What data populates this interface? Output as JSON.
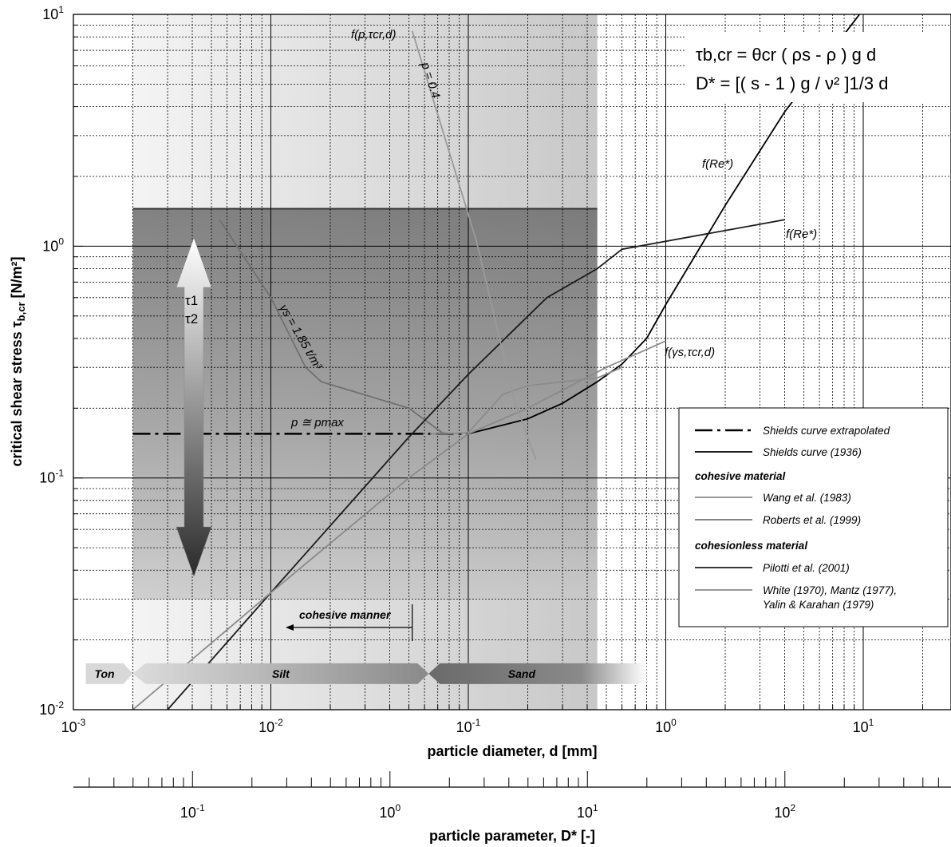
{
  "chart_data": {
    "type": "line",
    "xscale": "log",
    "yscale": "log",
    "xlim": [
      0.001,
      30
    ],
    "ylim": [
      0.01,
      10
    ],
    "xlabel": "particle diameter, d [mm]",
    "ylabel_main": "critical shear stress τ",
    "ylabel_sub": "b,cr",
    "ylabel_unit": " [N/m²]",
    "x2label": "particle parameter, D* [-]",
    "x_ticks": [
      {
        "base": "10",
        "exp": "-3",
        "value": 0.001
      },
      {
        "base": "10",
        "exp": "-2",
        "value": 0.01
      },
      {
        "base": "10",
        "exp": "-1",
        "value": 0.1
      },
      {
        "base": "10",
        "exp": "0",
        "value": 1
      },
      {
        "base": "10",
        "exp": "1",
        "value": 10
      }
    ],
    "y_ticks": [
      {
        "base": "10",
        "exp": "-2",
        "value": 0.01
      },
      {
        "base": "10",
        "exp": "-1",
        "value": 0.1
      },
      {
        "base": "10",
        "exp": "0",
        "value": 1
      },
      {
        "base": "10",
        "exp": "1",
        "value": 10
      }
    ],
    "x2_ticks": [
      {
        "base": "10",
        "exp": "-1",
        "value": 0.1
      },
      {
        "base": "10",
        "exp": "0",
        "value": 1
      },
      {
        "base": "10",
        "exp": "1",
        "value": 10
      },
      {
        "base": "10",
        "exp": "2",
        "value": 100
      }
    ],
    "x2_to_x_factor": 0.0401,
    "grid": true,
    "series": [
      {
        "name": "Shields curve extrapolated",
        "style": "dashdot",
        "color": "#000000",
        "x": [
          0.002,
          0.1
        ],
        "y": [
          0.155,
          0.155
        ]
      },
      {
        "name": "Shields curve (1936)",
        "style": "solid",
        "color": "#000000",
        "x": [
          0.1,
          0.2,
          0.3,
          0.45,
          0.6,
          0.8,
          1.0,
          2.0,
          4.0,
          10.0
        ],
        "y": [
          0.155,
          0.18,
          0.21,
          0.26,
          0.31,
          0.4,
          0.56,
          1.5,
          3.8,
          10.5
        ]
      },
      {
        "name": "Wang et al. (1983)",
        "style": "solid",
        "color": "#8c8c8c",
        "x": [
          0.064,
          0.077,
          0.1,
          0.15,
          0.2,
          0.3,
          0.45,
          0.6
        ],
        "y": [
          0.155,
          0.155,
          0.157,
          0.23,
          0.25,
          0.26,
          0.27,
          0.3
        ]
      },
      {
        "name": "Roberts et al. (1999)",
        "style": "solid",
        "color": "#707070",
        "x": [
          0.0055,
          0.007,
          0.01,
          0.015,
          0.018,
          0.05,
          0.075
        ],
        "y": [
          1.3,
          0.95,
          0.6,
          0.3,
          0.26,
          0.2,
          0.155
        ]
      },
      {
        "name": "Pilotti et al. (2001)",
        "style": "solid",
        "color": "#1a1a1a",
        "x": [
          0.003,
          0.01,
          0.05,
          0.1,
          0.25,
          0.45,
          0.6,
          1.0,
          4.0
        ],
        "y": [
          0.01,
          0.032,
          0.15,
          0.28,
          0.6,
          0.8,
          0.97,
          1.05,
          1.3
        ]
      },
      {
        "name": "White (1970), Mantz (1977), Yalin & Karahan (1979)",
        "style": "solid",
        "color": "#8a8a8a",
        "x": [
          0.002,
          0.01,
          0.05,
          0.1,
          0.2,
          0.5,
          1.0
        ],
        "y": [
          0.01,
          0.032,
          0.1,
          0.155,
          0.2,
          0.3,
          0.39
        ]
      },
      {
        "name": "f(p, τcr, d)",
        "style": "solid",
        "color": "#9a9a9a",
        "x": [
          0.052,
          0.11,
          0.17,
          0.22
        ],
        "y": [
          8.5,
          1.05,
          0.22,
          0.12
        ]
      }
    ],
    "annotations": {
      "f_p_tau_d": "f(p,τcr,d)",
      "p04": "p = 0.4",
      "fRe_upper": "f(Re*)",
      "fRe_lower": "f(Re*)",
      "f_gamma": "f(γs,τcr,d)",
      "gamma_s": "γs = 1.85 t/m³",
      "p_max": "p ≅ pmax",
      "tau1": "τ1",
      "tau2": "τ2",
      "cohesive_manner": "cohesive manner",
      "formula1": "τb,cr = θcr ( ρs - ρ ) g d",
      "formula2": "D* = [( s - 1 ) g / ν² ]1/3 d"
    },
    "bands": [
      {
        "label": "Ton",
        "x_from": 0.0012,
        "x_to": 0.002
      },
      {
        "label": "Silt",
        "x_from": 0.002,
        "x_to": 0.063
      },
      {
        "label": "Sand",
        "x_from": 0.063,
        "x_to": 0.8
      }
    ],
    "shaded_region": {
      "x_from": 0.002,
      "x_to": 0.45,
      "y_from": 0.01,
      "y_to": 1.45
    },
    "legend": {
      "placement": "right",
      "items": [
        {
          "label": "Shields curve extrapolated",
          "style": "dashdot",
          "color": "#000000"
        },
        {
          "label": "Shields curve (1936)",
          "style": "solid",
          "color": "#000000"
        },
        {
          "label": "cohesive material",
          "heading": true
        },
        {
          "label": "Wang et al. (1983)",
          "style": "solid",
          "color": "#8c8c8c"
        },
        {
          "label": "Roberts et al. (1999)",
          "style": "solid",
          "color": "#707070"
        },
        {
          "label": "cohesionless material",
          "heading": true
        },
        {
          "label": "Pilotti et al. (2001)",
          "style": "solid",
          "color": "#1a1a1a"
        },
        {
          "label": "White (1970), Mantz (1977),",
          "label2": "Yalin & Karahan (1979)",
          "style": "solid",
          "color": "#8a8a8a"
        }
      ]
    }
  }
}
